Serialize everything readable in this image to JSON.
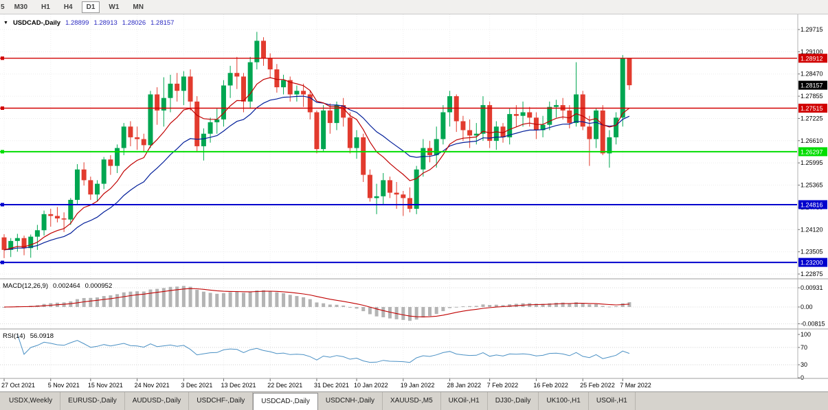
{
  "timeframe_bar": {
    "partial_first": "5",
    "buttons": [
      "M30",
      "H1",
      "H4",
      "D1",
      "W1",
      "MN"
    ],
    "active": "D1"
  },
  "chart_header": {
    "collapse_arrow": "▼",
    "symbol_label": "USDCAD-,Daily",
    "open": "1.28899",
    "high": "1.28913",
    "low": "1.28026",
    "close": "1.28157"
  },
  "price_axis_labels": [
    "1.29715",
    "1.29100",
    "1.28470",
    "1.27855",
    "1.27225",
    "1.26610",
    "1.25995",
    "1.25365",
    "1.24750",
    "1.24120",
    "1.23505",
    "1.22875"
  ],
  "hlines": [
    {
      "name": "resistance-upper",
      "price": 1.28912,
      "label": "1.28912",
      "color": "red",
      "width": 1.4
    },
    {
      "name": "resistance-mid",
      "price": 1.27515,
      "label": "1.27515",
      "color": "red",
      "width": 1.4
    },
    {
      "name": "support-green",
      "price": 1.26297,
      "label": "1.26297",
      "color": "green",
      "width": 2
    },
    {
      "name": "support-blue-upper",
      "price": 1.24816,
      "label": "1.24816",
      "color": "blue",
      "width": 2
    },
    {
      "name": "support-blue-lower",
      "price": 1.232,
      "label": "1.23200",
      "color": "blue",
      "width": 2
    }
  ],
  "current_price": {
    "value": 1.28157,
    "label": "1.28157"
  },
  "macd_panel": {
    "name": "MACD(12,26,9)",
    "value_main": "0.002464",
    "value_signal": "0.000952",
    "axis_labels": [
      "0.00931",
      "0.00",
      "-0.00815"
    ],
    "axis_values": [
      0.00931,
      0,
      -0.00815
    ]
  },
  "rsi_panel": {
    "name": "RSI(14)",
    "value": "56.0918",
    "axis_labels": [
      "100",
      "70",
      "30",
      "0"
    ],
    "axis_values": [
      100,
      70,
      30,
      0
    ],
    "levels": [
      70,
      30
    ],
    "period": 14
  },
  "x_axis_labels": [
    "27 Oct 2021",
    "5 Nov 2021",
    "15 Nov 2021",
    "24 Nov 2021",
    "3 Dec 2021",
    "13 Dec 2021",
    "22 Dec 2021",
    "31 Dec 2021",
    "10 Jan 2022",
    "19 Jan 2022",
    "28 Jan 2022",
    "7 Feb 2022",
    "16 Feb 2022",
    "25 Feb 2022",
    "7 Mar 2022"
  ],
  "tabs": [
    "USDX,Weekly",
    "EURUSD-,Daily",
    "AUDUSD-,Daily",
    "USDCHF-,Daily",
    "USDCAD-,Daily",
    "USDCNH-,Daily",
    "XAUUSD-,M5",
    "UKOil-,H1",
    "DJ30-,Daily",
    "UK100-,H1",
    "USOil-,H1"
  ],
  "active_tab": "USDCAD-,Daily",
  "colors": {
    "candle_up": "#00a651",
    "candle_down": "#e23b2e",
    "ma_fast": "#c00000",
    "ma_slow": "#001d99",
    "macd_hist": "#b4b4b4",
    "macd_signal": "#c00000",
    "rsi_line": "#4a90c4",
    "hline_red": "#d10000",
    "hline_green": "#00dd00",
    "hline_blue": "#0000cd",
    "tag_current_bg": "#000000",
    "header_values": "#2929c0"
  },
  "chart_data": {
    "type": "candlestick",
    "symbol": "USDCAD",
    "timeframe": "Daily",
    "title": "USDCAD-,Daily",
    "price_axis_top": 1.29715,
    "price_axis_bottom": 1.22875,
    "x_tick_indices": [
      0,
      7,
      13,
      20,
      27,
      33,
      40,
      47,
      53,
      60,
      67,
      73,
      80,
      87,
      93
    ],
    "ma_fast_period": 10,
    "ma_slow_period": 21,
    "macd_params": [
      12,
      26,
      9
    ],
    "rsi_period": 14,
    "candles": [
      [
        "2021.10.27",
        1.239,
        1.2399,
        1.2332,
        1.2355
      ],
      [
        "2021.10.28",
        1.2355,
        1.2388,
        1.2335,
        1.238
      ],
      [
        "2021.10.29",
        1.238,
        1.24,
        1.235,
        1.2388
      ],
      [
        "2021.11.01",
        1.2388,
        1.2395,
        1.234,
        1.236
      ],
      [
        "2021.11.02",
        1.236,
        1.2398,
        1.2333,
        1.2392
      ],
      [
        "2021.11.03",
        1.2392,
        1.2425,
        1.2355,
        1.241
      ],
      [
        "2021.11.04",
        1.241,
        1.2465,
        1.2395,
        1.2455
      ],
      [
        "2021.11.05",
        1.2455,
        1.247,
        1.242,
        1.245
      ],
      [
        "2021.11.08",
        1.245,
        1.2475,
        1.2432,
        1.2443
      ],
      [
        "2021.11.09",
        1.2443,
        1.246,
        1.2405,
        1.244
      ],
      [
        "2021.11.10",
        1.244,
        1.25,
        1.2425,
        1.2495
      ],
      [
        "2021.11.11",
        1.2495,
        1.2595,
        1.248,
        1.258
      ],
      [
        "2021.11.12",
        1.258,
        1.26,
        1.2535,
        1.255
      ],
      [
        "2021.11.15",
        1.255,
        1.256,
        1.2495,
        1.251
      ],
      [
        "2021.11.16",
        1.251,
        1.255,
        1.249,
        1.254
      ],
      [
        "2021.11.17",
        1.254,
        1.2615,
        1.2525,
        1.2608
      ],
      [
        "2021.11.18",
        1.2608,
        1.262,
        1.2565,
        1.259
      ],
      [
        "2021.11.19",
        1.259,
        1.265,
        1.257,
        1.264
      ],
      [
        "2021.11.22",
        1.264,
        1.271,
        1.262,
        1.27
      ],
      [
        "2021.11.23",
        1.27,
        1.2715,
        1.2645,
        1.267
      ],
      [
        "2021.11.24",
        1.267,
        1.27,
        1.2635,
        1.2665
      ],
      [
        "2021.11.25",
        1.2665,
        1.268,
        1.263,
        1.2648
      ],
      [
        "2021.11.26",
        1.2648,
        1.28,
        1.264,
        1.279
      ],
      [
        "2021.11.29",
        1.279,
        1.281,
        1.2705,
        1.2745
      ],
      [
        "2021.11.30",
        1.2745,
        1.2838,
        1.27,
        1.278
      ],
      [
        "2021.12.01",
        1.278,
        1.2845,
        1.274,
        1.282
      ],
      [
        "2021.12.02",
        1.282,
        1.285,
        1.277,
        1.28
      ],
      [
        "2021.12.03",
        1.28,
        1.2855,
        1.276,
        1.284
      ],
      [
        "2021.12.06",
        1.284,
        1.286,
        1.2745,
        1.277
      ],
      [
        "2021.12.07",
        1.277,
        1.2785,
        1.263,
        1.2645
      ],
      [
        "2021.12.08",
        1.2645,
        1.2695,
        1.2605,
        1.268
      ],
      [
        "2021.12.09",
        1.268,
        1.2725,
        1.2655,
        1.2712
      ],
      [
        "2021.12.10",
        1.2712,
        1.275,
        1.268,
        1.272
      ],
      [
        "2021.12.13",
        1.272,
        1.283,
        1.27,
        1.2815
      ],
      [
        "2021.12.14",
        1.2815,
        1.287,
        1.278,
        1.285
      ],
      [
        "2021.12.15",
        1.285,
        1.2895,
        1.2805,
        1.284
      ],
      [
        "2021.12.16",
        1.284,
        1.285,
        1.274,
        1.277
      ],
      [
        "2021.12.17",
        1.277,
        1.2895,
        1.275,
        1.288
      ],
      [
        "2021.12.20",
        1.288,
        1.2965,
        1.286,
        1.294
      ],
      [
        "2021.12.21",
        1.294,
        1.295,
        1.287,
        1.289
      ],
      [
        "2021.12.22",
        1.289,
        1.2905,
        1.2835,
        1.286
      ],
      [
        "2021.12.23",
        1.286,
        1.2875,
        1.2795,
        1.281
      ],
      [
        "2021.12.24",
        1.281,
        1.2845,
        1.279,
        1.283
      ],
      [
        "2021.12.27",
        1.283,
        1.284,
        1.277,
        1.279
      ],
      [
        "2021.12.28",
        1.279,
        1.2815,
        1.277,
        1.28
      ],
      [
        "2021.12.29",
        1.28,
        1.282,
        1.2755,
        1.279
      ],
      [
        "2021.12.30",
        1.279,
        1.28,
        1.272,
        1.274
      ],
      [
        "2021.12.31",
        1.274,
        1.2745,
        1.2625,
        1.2637
      ],
      [
        "2022.01.03",
        1.2637,
        1.276,
        1.263,
        1.2745
      ],
      [
        "2022.01.04",
        1.2745,
        1.2765,
        1.268,
        1.271
      ],
      [
        "2022.01.05",
        1.271,
        1.277,
        1.269,
        1.276
      ],
      [
        "2022.01.06",
        1.276,
        1.278,
        1.27,
        1.2725
      ],
      [
        "2022.01.07",
        1.2725,
        1.274,
        1.2625,
        1.264
      ],
      [
        "2022.01.10",
        1.264,
        1.269,
        1.261,
        1.267
      ],
      [
        "2022.01.11",
        1.267,
        1.268,
        1.2545,
        1.2565
      ],
      [
        "2022.01.12",
        1.2565,
        1.258,
        1.249,
        1.25
      ],
      [
        "2022.01.13",
        1.25,
        1.254,
        1.2455,
        1.2505
      ],
      [
        "2022.01.14",
        1.2505,
        1.257,
        1.248,
        1.255
      ],
      [
        "2022.01.17",
        1.255,
        1.256,
        1.25,
        1.2515
      ],
      [
        "2022.01.18",
        1.2515,
        1.2545,
        1.247,
        1.251
      ],
      [
        "2022.01.19",
        1.251,
        1.252,
        1.245,
        1.25
      ],
      [
        "2022.01.20",
        1.25,
        1.253,
        1.246,
        1.247
      ],
      [
        "2022.01.21",
        1.247,
        1.259,
        1.2455,
        1.258
      ],
      [
        "2022.01.24",
        1.258,
        1.2665,
        1.256,
        1.264
      ],
      [
        "2022.01.25",
        1.264,
        1.266,
        1.26,
        1.262
      ],
      [
        "2022.01.26",
        1.262,
        1.27,
        1.2585,
        1.2665
      ],
      [
        "2022.01.27",
        1.2665,
        1.276,
        1.265,
        1.274
      ],
      [
        "2022.01.28",
        1.274,
        1.28,
        1.27,
        1.2785
      ],
      [
        "2022.01.31",
        1.2785,
        1.279,
        1.2685,
        1.2715
      ],
      [
        "2022.02.01",
        1.2715,
        1.273,
        1.266,
        1.269
      ],
      [
        "2022.02.02",
        1.269,
        1.272,
        1.264,
        1.2675
      ],
      [
        "2022.02.03",
        1.2675,
        1.271,
        1.265,
        1.268
      ],
      [
        "2022.02.04",
        1.268,
        1.2785,
        1.266,
        1.276
      ],
      [
        "2022.02.07",
        1.276,
        1.277,
        1.264,
        1.266
      ],
      [
        "2022.02.08",
        1.266,
        1.2715,
        1.2635,
        1.27
      ],
      [
        "2022.02.09",
        1.27,
        1.271,
        1.2655,
        1.267
      ],
      [
        "2022.02.10",
        1.267,
        1.275,
        1.265,
        1.2735
      ],
      [
        "2022.02.11",
        1.2735,
        1.276,
        1.27,
        1.273
      ],
      [
        "2022.02.14",
        1.273,
        1.277,
        1.27,
        1.274
      ],
      [
        "2022.02.15",
        1.274,
        1.2755,
        1.27,
        1.2725
      ],
      [
        "2022.02.16",
        1.2725,
        1.274,
        1.2665,
        1.269
      ],
      [
        "2022.02.17",
        1.269,
        1.273,
        1.267,
        1.2705
      ],
      [
        "2022.02.18",
        1.2705,
        1.277,
        1.269,
        1.2755
      ],
      [
        "2022.02.21",
        1.2755,
        1.2775,
        1.2725,
        1.276
      ],
      [
        "2022.02.22",
        1.276,
        1.278,
        1.272,
        1.2745
      ],
      [
        "2022.02.23",
        1.2745,
        1.276,
        1.2695,
        1.271
      ],
      [
        "2022.02.24",
        1.271,
        1.288,
        1.27,
        1.279
      ],
      [
        "2022.02.25",
        1.279,
        1.28,
        1.269,
        1.27
      ],
      [
        "2022.02.28",
        1.27,
        1.273,
        1.259,
        1.2665
      ],
      [
        "2022.03.01",
        1.2665,
        1.275,
        1.264,
        1.2745
      ],
      [
        "2022.03.02",
        1.2745,
        1.276,
        1.262,
        1.2625
      ],
      [
        "2022.03.03",
        1.2625,
        1.269,
        1.2585,
        1.267
      ],
      [
        "2022.03.04",
        1.267,
        1.274,
        1.265,
        1.2725
      ],
      [
        "2022.03.07",
        1.2725,
        1.29,
        1.27,
        1.289
      ],
      [
        "2022.03.08",
        1.28899,
        1.28913,
        1.28026,
        1.28157
      ]
    ]
  }
}
